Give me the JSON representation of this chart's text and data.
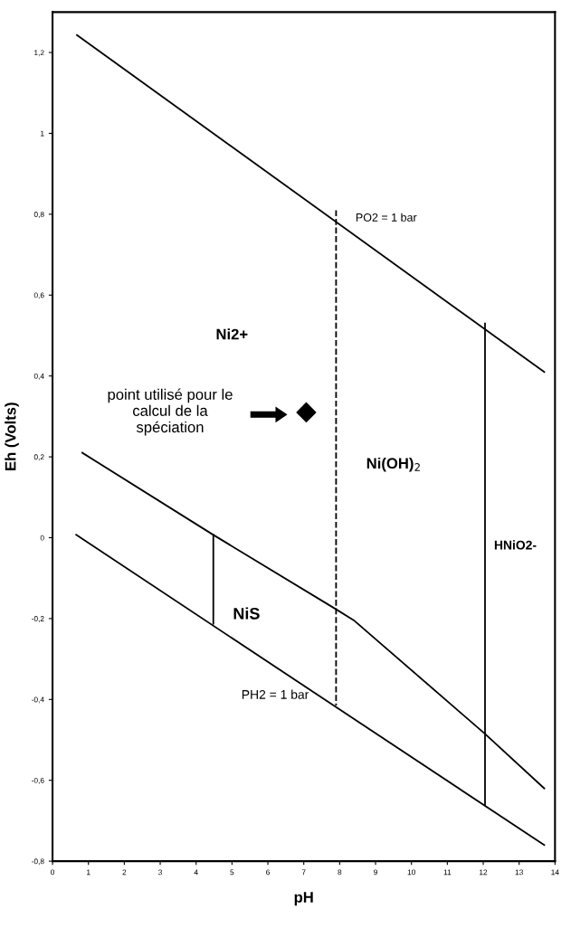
{
  "chart_data": {
    "type": "line",
    "xlabel": "pH",
    "ylabel": "Eh (Volts)",
    "xlim": [
      0,
      14
    ],
    "ylim": [
      -0.8,
      1.3
    ],
    "xticks": [
      0,
      1,
      2,
      3,
      4,
      5,
      6,
      7,
      8,
      9,
      10,
      11,
      12,
      13,
      14
    ],
    "yticks": [
      {
        "value": -0.8,
        "label": "-0,8"
      },
      {
        "value": -0.6,
        "label": "-0,6"
      },
      {
        "value": -0.4,
        "label": "-0,4"
      },
      {
        "value": -0.2,
        "label": "-0,2"
      },
      0,
      {
        "value": 0.2,
        "label": "0,2"
      },
      {
        "value": 0.4,
        "label": "0,4"
      },
      {
        "value": 0.6,
        "label": "0,6"
      },
      {
        "value": 0.8,
        "label": "0,8"
      },
      1,
      {
        "value": 1.2,
        "label": "1,2"
      }
    ],
    "grid": false,
    "marker": "none",
    "line_style": "solid",
    "series": [
      {
        "color": "#000000",
        "x": [
          0.68,
          13.7
        ],
        "values": [
          1.243,
          0.41
        ]
      },
      {
        "color": "#000000",
        "x": [
          0.66,
          13.7
        ],
        "values": [
          0.007,
          -0.76
        ]
      },
      {
        "color": "#000000",
        "x": [
          0.83,
          4.48,
          7.9,
          8.39,
          12.05,
          13.7
        ],
        "values": [
          0.21,
          0.007,
          -0.177,
          -0.204,
          -0.485,
          -0.62
        ]
      },
      {
        "color": "#000000",
        "x": [
          4.48,
          4.48
        ],
        "values": [
          0.007,
          -0.213
        ]
      },
      {
        "color": "#000000",
        "line_style": "dashed",
        "x": [
          7.9,
          7.9
        ],
        "values": [
          0.81,
          -0.415
        ]
      },
      {
        "color": "#000000",
        "x": [
          12.05,
          12.05
        ],
        "values": [
          0.53,
          -0.66
        ]
      },
      {
        "type": "scatter",
        "color": "#000000",
        "marker": "diamond",
        "x": [
          7.07
        ],
        "values": [
          0.31
        ]
      }
    ],
    "annotations": [
      "Ni2+",
      "point utilisé pour le\ncalcul de la\nspéciation",
      "Ni(OH)$_{2}$",
      "HNiO2-",
      "NiS",
      "PO2 = 1 bar",
      "PH2 = 1 bar"
    ]
  }
}
